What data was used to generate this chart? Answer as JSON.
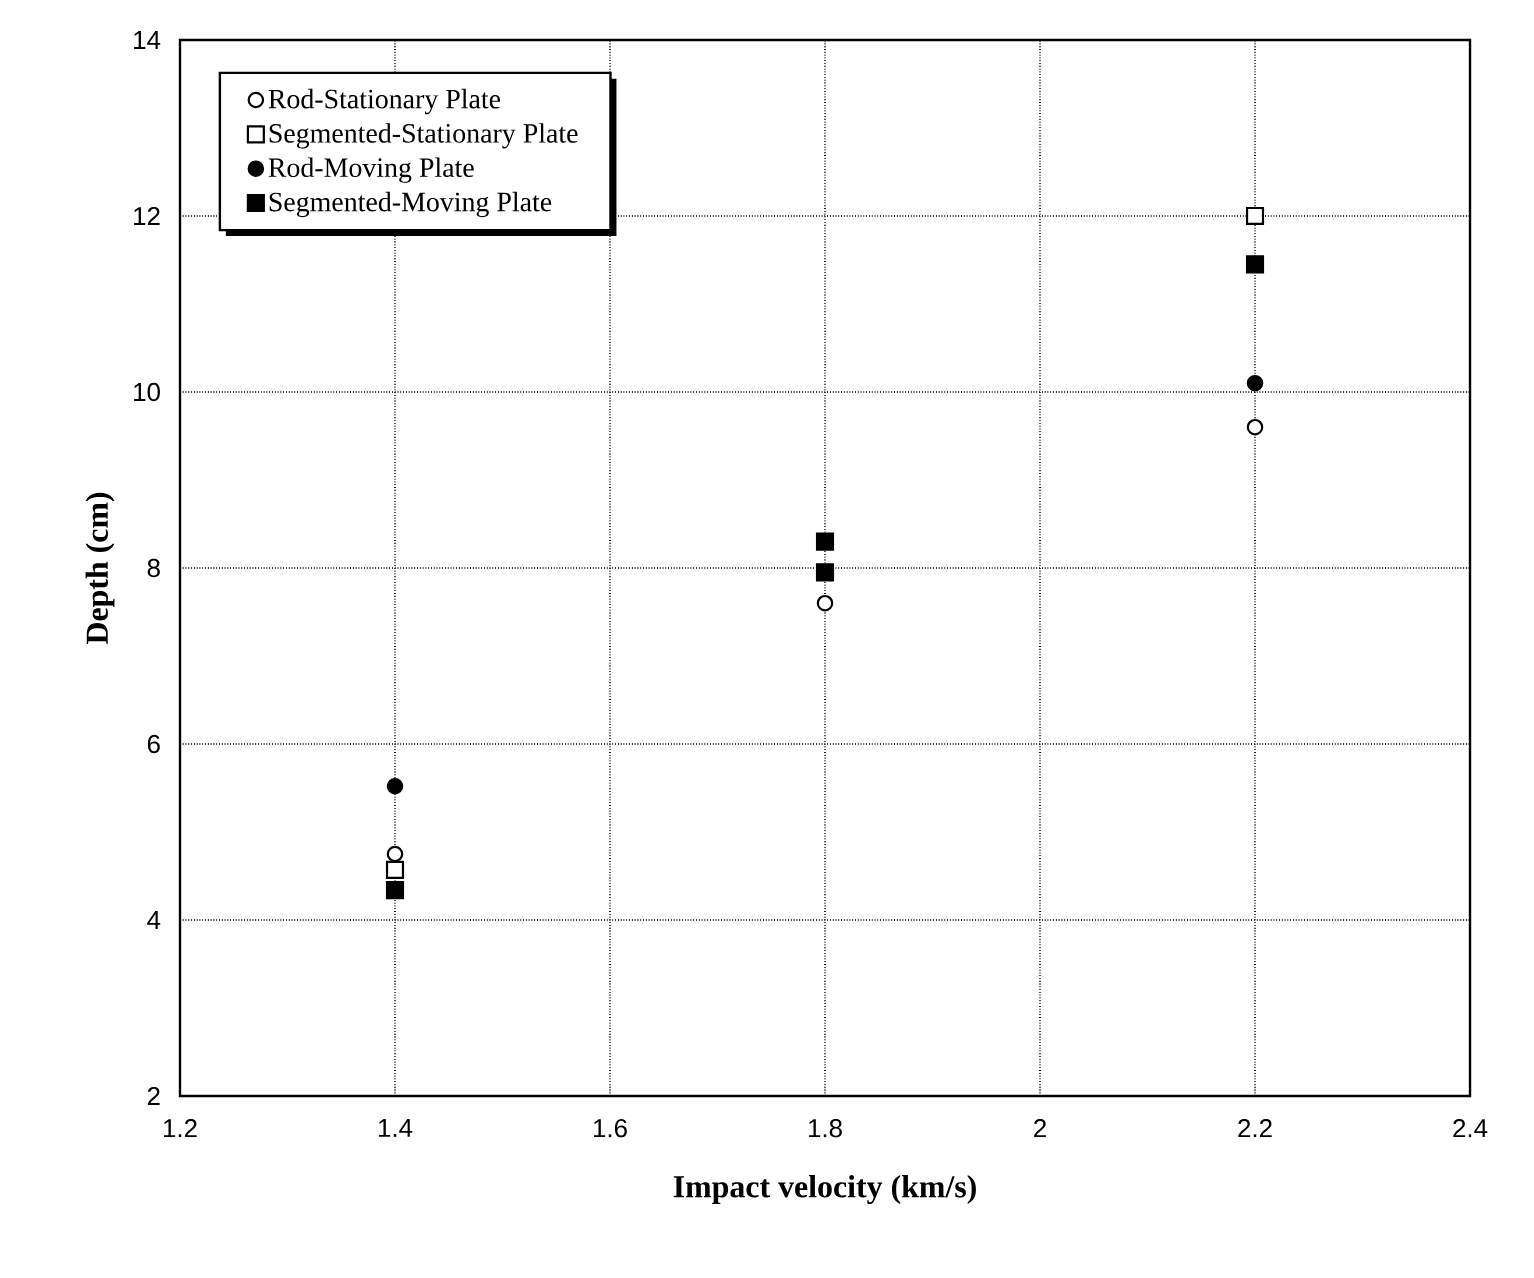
{
  "chart_data": {
    "type": "scatter",
    "xlabel": "Impact velocity (km/s)",
    "ylabel": "Depth (cm)",
    "xlim": [
      1.2,
      2.4
    ],
    "xticks": [
      1.2,
      1.4,
      1.6,
      1.8,
      2,
      2.2,
      2.4
    ],
    "ylim": [
      2,
      14
    ],
    "yticks": [
      2,
      4,
      6,
      8,
      10,
      12,
      14
    ],
    "grid": true,
    "legend": "top left",
    "series": [
      {
        "name": "Rod-Stationary Plate",
        "color": "#ffffff",
        "marker": "circle",
        "x": [
          1.4,
          1.8,
          2.2
        ],
        "values": [
          4.75,
          7.6,
          9.6
        ]
      },
      {
        "name": "Segmented-Stationary Plate",
        "color": "#ffffff",
        "marker": "square",
        "x": [
          1.4,
          2.2
        ],
        "values": [
          4.57,
          12.0
        ]
      },
      {
        "name": "Rod-Moving Plate",
        "color": "#000000",
        "marker": "circle",
        "x": [
          1.4,
          2.2
        ],
        "values": [
          5.52,
          10.1
        ]
      },
      {
        "name": "Segmented-Moving Plate",
        "color": "#000000",
        "marker": "square",
        "x": [
          1.4,
          1.8,
          1.8,
          2.2
        ],
        "values": [
          4.34,
          8.3,
          7.95,
          11.45
        ]
      }
    ]
  }
}
